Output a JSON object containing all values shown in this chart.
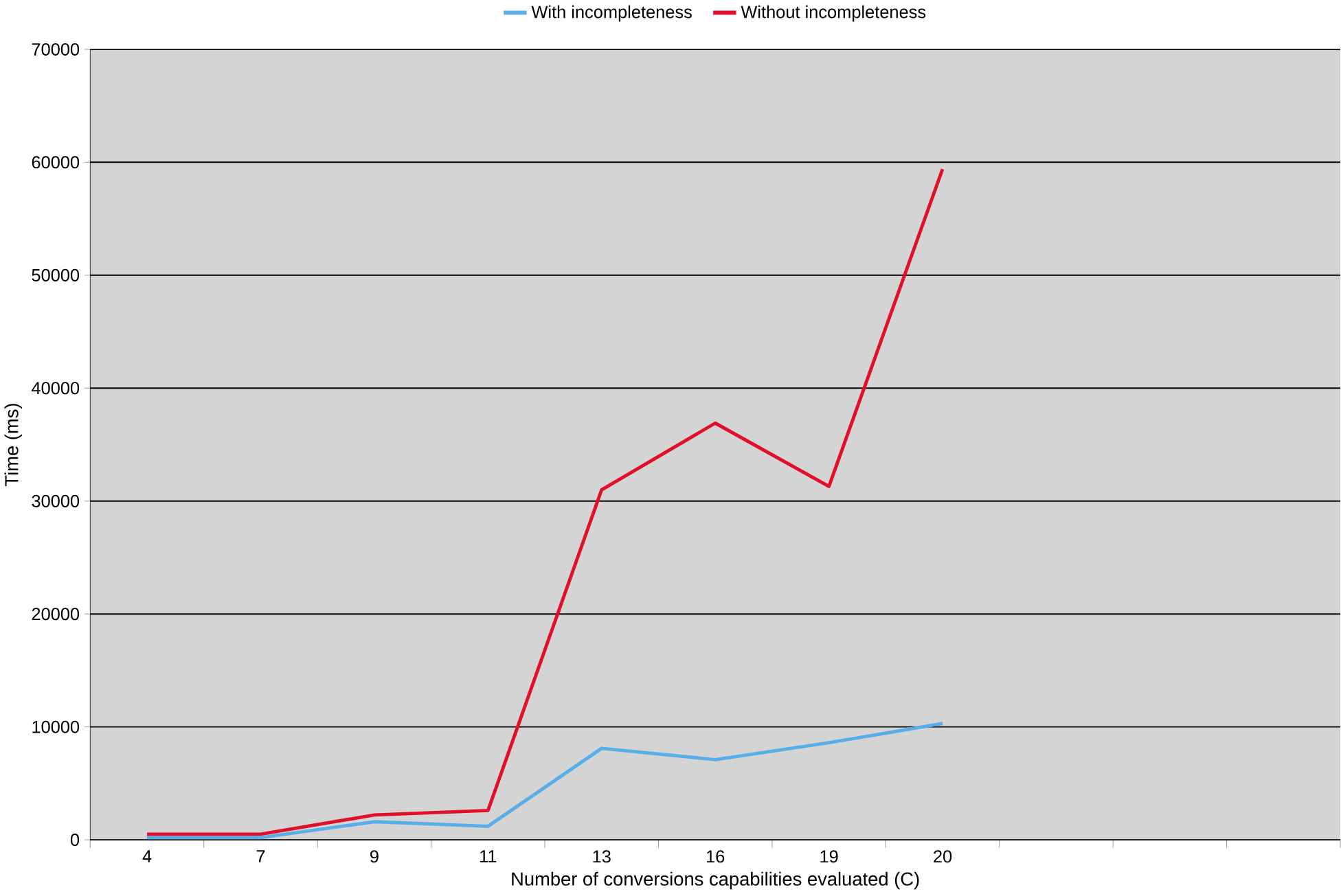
{
  "chart_data": {
    "type": "line",
    "xlabel": "Number of conversions capabilities evaluated (C)",
    "ylabel": "Time (ms)",
    "categories": [
      "4",
      "7",
      "9",
      "11",
      "13",
      "16",
      "19",
      "20",
      null,
      null,
      null
    ],
    "series": [
      {
        "name": "With incompleteness",
        "color": "#5aaee8",
        "values": [
          200,
          200,
          1600,
          1200,
          8100,
          7100,
          8600,
          10300,
          null,
          null,
          null
        ]
      },
      {
        "name": "Without incompleteness",
        "color": "#e0102a",
        "values": [
          500,
          500,
          2200,
          2600,
          31000,
          36900,
          31300,
          59400,
          null,
          null,
          null
        ]
      }
    ],
    "ylim": [
      0,
      70000
    ],
    "yticks": [
      0,
      10000,
      20000,
      30000,
      40000,
      50000,
      60000,
      70000
    ],
    "grid": "y",
    "legend": "top",
    "marker": "none",
    "line_style": "solid"
  }
}
